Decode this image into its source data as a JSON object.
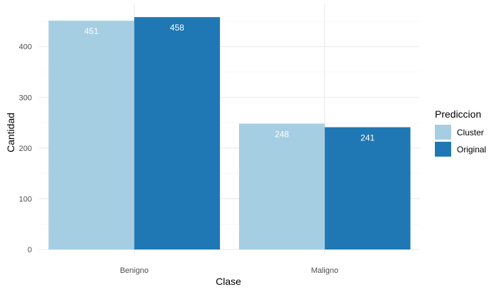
{
  "chart_data": {
    "type": "bar",
    "categories": [
      "Benigno",
      "Maligno"
    ],
    "series": [
      {
        "name": "Cluster",
        "values": [
          451,
          248
        ],
        "color": "#A6CEE3"
      },
      {
        "name": "Original",
        "values": [
          458,
          241
        ],
        "color": "#1F78B4"
      }
    ],
    "xlabel": "Clase",
    "ylabel": "Cantidad",
    "ylim": [
      0,
      460
    ],
    "yticks": [
      0,
      100,
      200,
      300,
      400
    ],
    "legend": {
      "title": "Prediccion",
      "position": "right"
    },
    "grid": true,
    "bar_labels": true
  }
}
